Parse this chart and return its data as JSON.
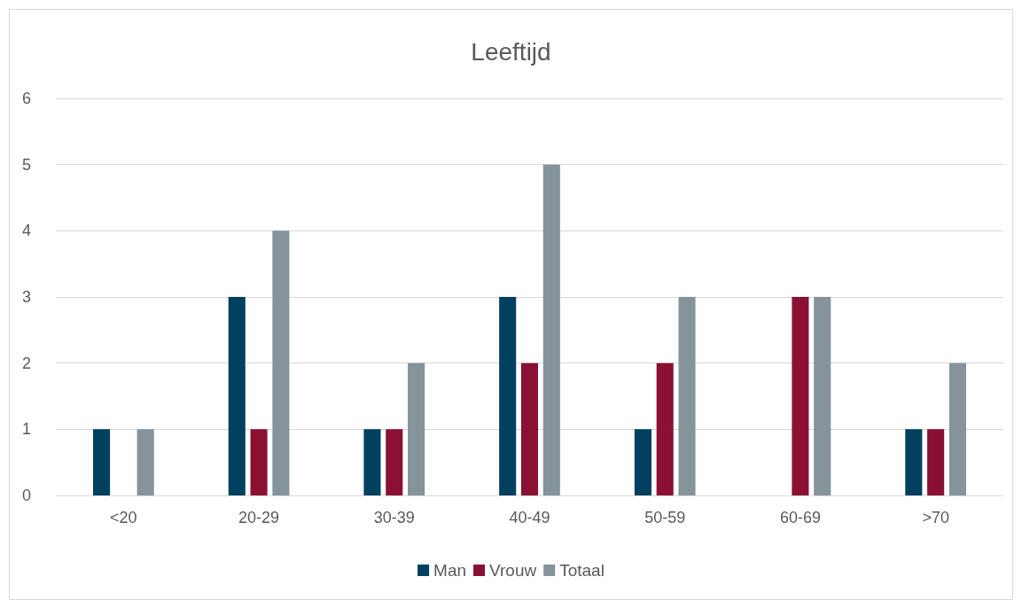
{
  "chart_data": {
    "type": "bar",
    "title": "Leeftijd",
    "categories": [
      "<20",
      "20-29",
      "30-39",
      "40-49",
      "50-59",
      "60-69",
      ">70"
    ],
    "series": [
      {
        "name": "Man",
        "color": "#02405f",
        "values": [
          1,
          3,
          1,
          3,
          1,
          0,
          1
        ]
      },
      {
        "name": "Vrouw",
        "color": "#8a1133",
        "values": [
          0,
          1,
          1,
          2,
          2,
          3,
          1
        ]
      },
      {
        "name": "Totaal",
        "color": "#85939a",
        "values": [
          1,
          4,
          2,
          5,
          3,
          3,
          2
        ]
      }
    ],
    "ylim": [
      0,
      6
    ],
    "yticks": [
      0,
      1,
      2,
      3,
      4,
      5,
      6
    ],
    "grid": "y",
    "legend": "bottom"
  }
}
